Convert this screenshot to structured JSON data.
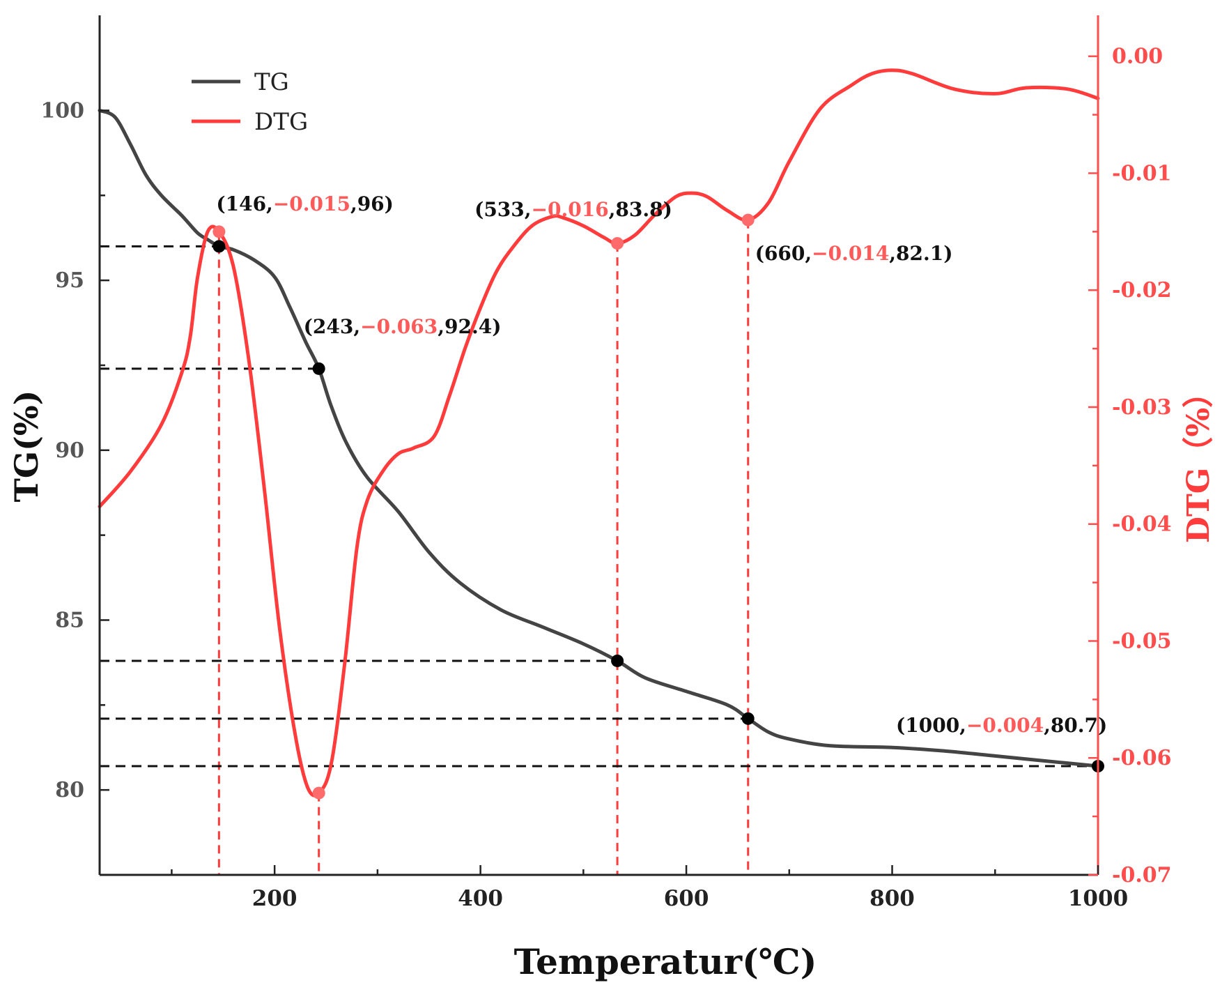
{
  "chart_data": {
    "type": "line",
    "title": "",
    "xlabel": "Temperatur(℃)",
    "ylabel_left": "TG(%)",
    "ylabel_right": "DTG（%）",
    "xlim": [
      30,
      1000
    ],
    "ylim_left": [
      77.5,
      102.8
    ],
    "ylim_right": [
      -0.07,
      0.0035
    ],
    "x_ticks": [
      200,
      400,
      600,
      800,
      1000
    ],
    "x_tick_labels": [
      "200",
      "400",
      "600",
      "800",
      "1000"
    ],
    "y_left_ticks": [
      80,
      85,
      90,
      95,
      100
    ],
    "y_left_tick_labels": [
      "80",
      "85",
      "90",
      "95",
      "100"
    ],
    "y_right_ticks": [
      0.0,
      -0.01,
      -0.02,
      -0.03,
      -0.04,
      -0.05,
      -0.06,
      -0.07
    ],
    "y_right_tick_labels": [
      "0.00",
      "-0.01",
      "-0.02",
      "-0.03",
      "-0.04",
      "-0.05",
      "-0.06",
      "-0.07"
    ],
    "legend": {
      "position": "top-left",
      "entries": [
        "TG",
        "DTG"
      ]
    },
    "colors": {
      "TG": "#444444",
      "DTG": "#ff3b3b",
      "guide_black": "#111111",
      "guide_red": "#ff3b3b"
    },
    "series": [
      {
        "name": "TG",
        "axis": "left",
        "x": [
          30,
          45,
          60,
          75,
          90,
          110,
          125,
          135,
          146,
          160,
          180,
          200,
          215,
          230,
          243,
          255,
          270,
          290,
          320,
          350,
          380,
          420,
          460,
          500,
          533,
          560,
          600,
          640,
          660,
          680,
          700,
          740,
          800,
          850,
          900,
          950,
          1000
        ],
        "values": [
          100.0,
          99.8,
          99.0,
          98.1,
          97.5,
          96.9,
          96.4,
          96.2,
          96.0,
          95.9,
          95.6,
          95.1,
          94.2,
          93.2,
          92.4,
          91.3,
          90.2,
          89.2,
          88.2,
          87.0,
          86.1,
          85.3,
          84.8,
          84.3,
          83.8,
          83.3,
          82.9,
          82.5,
          82.1,
          81.7,
          81.5,
          81.3,
          81.25,
          81.15,
          81.0,
          80.85,
          80.7
        ]
      },
      {
        "name": "DTG",
        "axis": "right",
        "x": [
          30,
          60,
          90,
          110,
          118,
          125,
          135,
          146,
          160,
          175,
          190,
          205,
          220,
          232,
          243,
          255,
          268,
          280,
          290,
          305,
          320,
          335,
          355,
          370,
          385,
          400,
          415,
          430,
          450,
          470,
          480,
          500,
          520,
          533,
          550,
          570,
          590,
          605,
          620,
          640,
          660,
          680,
          700,
          730,
          760,
          780,
          800,
          820,
          860,
          900,
          930,
          970,
          1000
        ],
        "values": [
          -0.0385,
          -0.0355,
          -0.0315,
          -0.027,
          -0.024,
          -0.019,
          -0.015,
          -0.015,
          -0.018,
          -0.026,
          -0.037,
          -0.049,
          -0.058,
          -0.0625,
          -0.063,
          -0.0605,
          -0.052,
          -0.042,
          -0.038,
          -0.0355,
          -0.034,
          -0.0335,
          -0.0325,
          -0.029,
          -0.025,
          -0.0215,
          -0.0185,
          -0.0165,
          -0.0145,
          -0.0137,
          -0.0138,
          -0.0145,
          -0.0155,
          -0.016,
          -0.0153,
          -0.0135,
          -0.012,
          -0.0117,
          -0.012,
          -0.0132,
          -0.014,
          -0.0125,
          -0.009,
          -0.0045,
          -0.0025,
          -0.0015,
          -0.0012,
          -0.0015,
          -0.0028,
          -0.0032,
          -0.0027,
          -0.0028,
          -0.0036
        ]
      }
    ],
    "annotations": [
      {
        "x": 146,
        "dtg": -0.015,
        "tg": 96,
        "label_pre": "(146,",
        "label_red": "−0.015",
        "label_post": ",96)"
      },
      {
        "x": 243,
        "dtg": -0.063,
        "tg": 92.4,
        "label_pre": "(243,",
        "label_red": "−0.063",
        "label_post": ",92.4)"
      },
      {
        "x": 533,
        "dtg": -0.016,
        "tg": 83.8,
        "label_pre": "(533,",
        "label_red": "−0.016",
        "label_post": ",83.8)"
      },
      {
        "x": 660,
        "dtg": -0.014,
        "tg": 82.1,
        "label_pre": "(660,",
        "label_red": "−0.014",
        "label_post": ",82.1)"
      },
      {
        "x": 1000,
        "dtg": -0.004,
        "tg": 80.7,
        "label_pre": "(1000,",
        "label_red": "−0.004",
        "label_post": ",80.7)"
      }
    ]
  }
}
